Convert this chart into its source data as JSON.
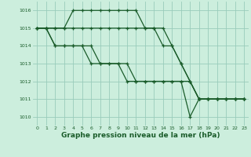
{
  "background_color": "#cceedd",
  "grid_color": "#99ccbb",
  "line_color": "#1a5c2a",
  "xlabel": "Graphe pression niveau de la mer (hPa)",
  "xlabel_fontsize": 6.5,
  "ylim": [
    1009.5,
    1016.5
  ],
  "xlim": [
    -0.5,
    23.5
  ],
  "yticks": [
    1010,
    1011,
    1012,
    1013,
    1014,
    1015,
    1016
  ],
  "xticks": [
    0,
    1,
    2,
    3,
    4,
    5,
    6,
    7,
    8,
    9,
    10,
    11,
    12,
    13,
    14,
    15,
    16,
    17,
    18,
    19,
    20,
    21,
    22,
    23
  ],
  "series": [
    [
      1015,
      1015,
      1015,
      1015,
      1015,
      1015,
      1015,
      1015,
      1015,
      1015,
      1015,
      1015,
      1015,
      1015,
      1015,
      1014,
      1013,
      1012,
      1011,
      1011,
      1011,
      1011,
      1011,
      1011
    ],
    [
      1015,
      1015,
      1015,
      1015,
      1016,
      1016,
      1016,
      1016,
      1016,
      1016,
      1016,
      1016,
      1015,
      1015,
      1014,
      1014,
      1013,
      1012,
      1011,
      1011,
      1011,
      1011,
      1011,
      1011
    ],
    [
      1015,
      1015,
      1014,
      1014,
      1014,
      1014,
      1014,
      1013,
      1013,
      1013,
      1013,
      1012,
      1012,
      1012,
      1012,
      1012,
      1012,
      1012,
      1011,
      1011,
      1011,
      1011,
      1011,
      1011
    ],
    [
      1015,
      1015,
      1014,
      1014,
      1014,
      1014,
      1013,
      1013,
      1013,
      1013,
      1012,
      1012,
      1012,
      1012,
      1012,
      1012,
      1012,
      1010,
      1011,
      1011,
      1011,
      1011,
      1011,
      1011
    ]
  ]
}
